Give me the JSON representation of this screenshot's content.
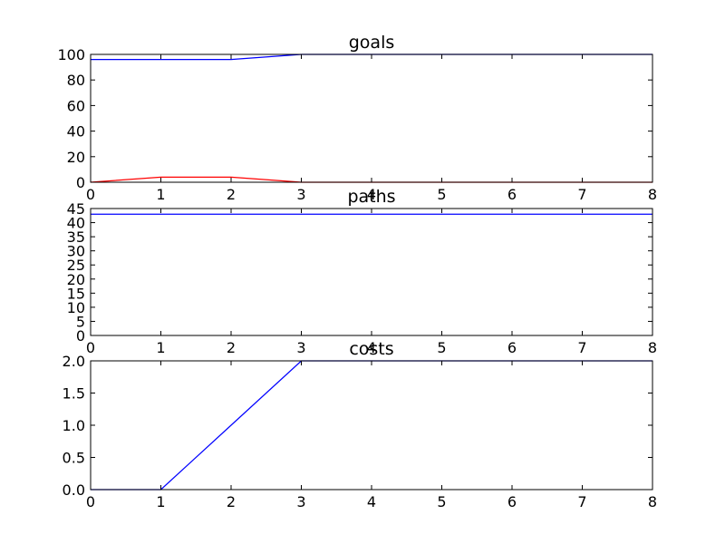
{
  "chart_data": [
    {
      "type": "line",
      "title": "goals",
      "xlim": [
        0,
        8
      ],
      "ylim": [
        0,
        100
      ],
      "xticks": [
        "0",
        "1",
        "2",
        "3",
        "4",
        "5",
        "6",
        "7",
        "8"
      ],
      "yticks": [
        "0",
        "20",
        "40",
        "60",
        "80",
        "100"
      ],
      "grid": false,
      "series": [
        {
          "color": "#0000ff",
          "x": [
            0,
            1,
            2,
            3,
            4,
            5,
            6,
            7,
            8
          ],
          "y": [
            96,
            96,
            96,
            100,
            100,
            100,
            100,
            100,
            100
          ]
        },
        {
          "color": "#ff0000",
          "x": [
            0,
            1,
            2,
            3,
            4,
            5,
            6,
            7,
            8
          ],
          "y": [
            0,
            4,
            4,
            0,
            0,
            0,
            0,
            0,
            0
          ]
        }
      ]
    },
    {
      "type": "line",
      "title": "paths",
      "xlim": [
        0,
        8
      ],
      "ylim": [
        0,
        45
      ],
      "xticks": [
        "0",
        "1",
        "2",
        "3",
        "4",
        "5",
        "6",
        "7",
        "8"
      ],
      "yticks": [
        "0",
        "5",
        "10",
        "15",
        "20",
        "25",
        "30",
        "35",
        "40",
        "45"
      ],
      "grid": false,
      "series": [
        {
          "color": "#0000ff",
          "x": [
            0,
            1,
            2,
            3,
            4,
            5,
            6,
            7,
            8
          ],
          "y": [
            43,
            43,
            43,
            43,
            43,
            43,
            43,
            43,
            43
          ]
        }
      ]
    },
    {
      "type": "line",
      "title": "costs",
      "xlim": [
        0,
        8
      ],
      "ylim": [
        0,
        2.0
      ],
      "xticks": [
        "0",
        "1",
        "2",
        "3",
        "4",
        "5",
        "6",
        "7",
        "8"
      ],
      "yticks": [
        "0.0",
        "0.5",
        "1.0",
        "1.5",
        "2.0"
      ],
      "grid": false,
      "series": [
        {
          "color": "#0000ff",
          "x": [
            0,
            1,
            2,
            3,
            4,
            5,
            6,
            7,
            8
          ],
          "y": [
            0,
            0,
            1,
            2,
            2,
            2,
            2,
            2,
            2
          ]
        }
      ]
    }
  ]
}
